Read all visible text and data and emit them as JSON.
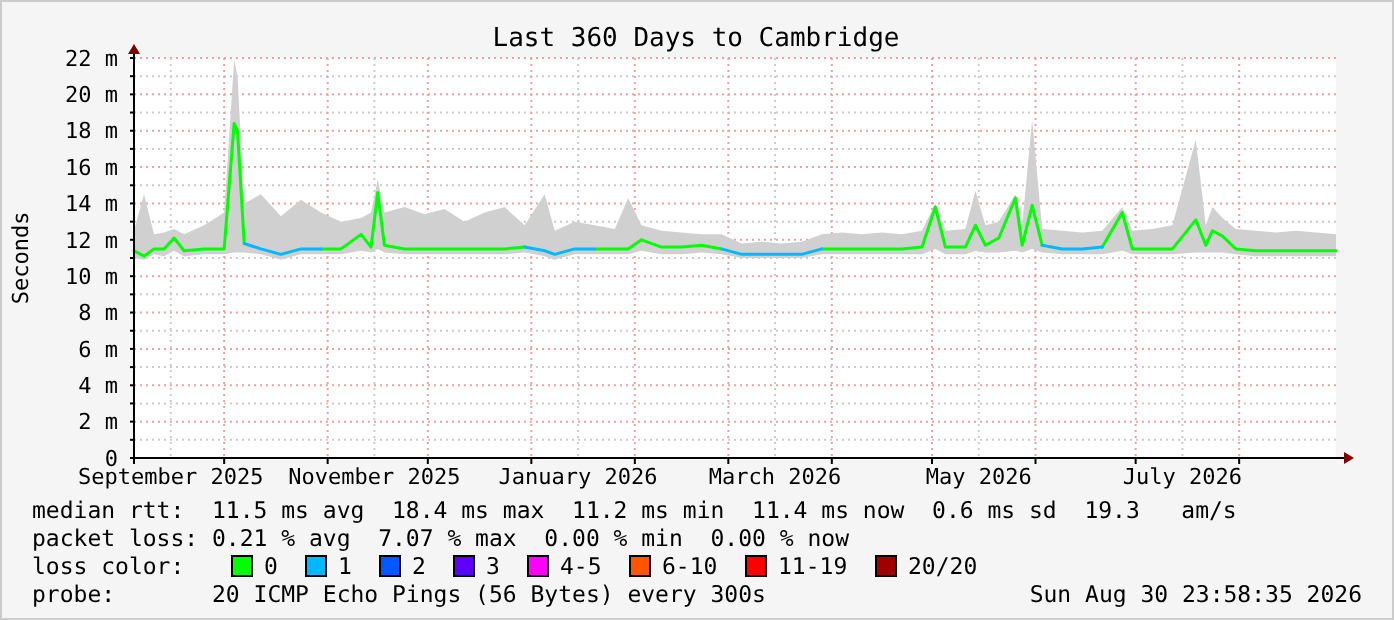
{
  "chart_data": {
    "type": "line",
    "title": "Last 360 Days to Cambridge",
    "ylabel": "Seconds",
    "legend_title": "loss color:",
    "legend": "bottom",
    "grid": true,
    "marker": "none",
    "line_style": "solid",
    "xlim": [
      "2025-09-04",
      "2026-08-30"
    ],
    "xticks": [
      {
        "value": "2025-09-15",
        "label": "September 2025"
      },
      {
        "value": "2025-10-01",
        "label": null
      },
      {
        "value": "2025-11-01",
        "label": null
      },
      {
        "value": "2025-11-15",
        "label": "November 2025"
      },
      {
        "value": "2025-12-01",
        "label": null
      },
      {
        "value": "2026-01-01",
        "label": null
      },
      {
        "value": "2026-01-15",
        "label": "January 2026"
      },
      {
        "value": "2026-02-01",
        "label": null
      },
      {
        "value": "2026-03-01",
        "label": null
      },
      {
        "value": "2026-03-15",
        "label": "March 2026"
      },
      {
        "value": "2026-04-01",
        "label": null
      },
      {
        "value": "2026-05-01",
        "label": null
      },
      {
        "value": "2026-05-15",
        "label": "May 2026"
      },
      {
        "value": "2026-06-01",
        "label": null
      },
      {
        "value": "2026-07-01",
        "label": null
      },
      {
        "value": "2026-07-15",
        "label": "July 2026"
      },
      {
        "value": "2026-08-01",
        "label": null
      }
    ],
    "ylim": [
      0,
      22
    ],
    "yticks": [
      0,
      {
        "value": 1,
        "label": null
      },
      {
        "value": 2,
        "label": "2 m"
      },
      {
        "value": 3,
        "label": null
      },
      {
        "value": 4,
        "label": "4 m"
      },
      {
        "value": 5,
        "label": null
      },
      {
        "value": 6,
        "label": "6 m"
      },
      {
        "value": 7,
        "label": null
      },
      {
        "value": 8,
        "label": "8 m"
      },
      {
        "value": 9,
        "label": null
      },
      {
        "value": 10,
        "label": "10 m"
      },
      {
        "value": 11,
        "label": null
      },
      {
        "value": 12,
        "label": "12 m"
      },
      {
        "value": 13,
        "label": null
      },
      {
        "value": 14,
        "label": "14 m"
      },
      {
        "value": 15,
        "label": null
      },
      {
        "value": 16,
        "label": "16 m"
      },
      {
        "value": 17,
        "label": null
      },
      {
        "value": 18,
        "label": "18 m"
      },
      {
        "value": 19,
        "label": null
      },
      {
        "value": 20,
        "label": "20 m"
      },
      {
        "value": 21,
        "label": null
      },
      {
        "value": 22,
        "label": "22 m"
      }
    ],
    "x": [
      "2025-09-04",
      "2025-09-07",
      "2025-09-10",
      "2025-09-13",
      "2025-09-16",
      "2025-09-19",
      "2025-09-25",
      "2025-10-01",
      "2025-10-04",
      "2025-10-05",
      "2025-10-07",
      "2025-10-12",
      "2025-10-18",
      "2025-10-24",
      "2025-10-30",
      "2025-11-05",
      "2025-11-11",
      "2025-11-14",
      "2025-11-16",
      "2025-11-18",
      "2025-11-24",
      "2025-11-30",
      "2025-12-06",
      "2025-12-12",
      "2025-12-18",
      "2025-12-24",
      "2025-12-30",
      "2026-01-05",
      "2026-01-08",
      "2026-01-14",
      "2026-01-20",
      "2026-01-26",
      "2026-01-30",
      "2026-02-03",
      "2026-02-09",
      "2026-02-15",
      "2026-02-21",
      "2026-02-27",
      "2026-03-05",
      "2026-03-11",
      "2026-03-17",
      "2026-03-23",
      "2026-03-29",
      "2026-04-04",
      "2026-04-10",
      "2026-04-16",
      "2026-04-22",
      "2026-04-28",
      "2026-05-02",
      "2026-05-05",
      "2026-05-11",
      "2026-05-14",
      "2026-05-17",
      "2026-05-21",
      "2026-05-26",
      "2026-05-28",
      "2026-05-31",
      "2026-06-03",
      "2026-06-09",
      "2026-06-15",
      "2026-06-21",
      "2026-06-27",
      "2026-06-30",
      "2026-07-06",
      "2026-07-12",
      "2026-07-19",
      "2026-07-22",
      "2026-07-24",
      "2026-07-27",
      "2026-07-31",
      "2026-08-06",
      "2026-08-12",
      "2026-08-18",
      "2026-08-24",
      "2026-08-30"
    ],
    "series": [
      {
        "name": "0",
        "color": "#00ff00",
        "values": [
          11.4,
          11.1,
          11.5,
          11.5,
          12.1,
          11.4,
          11.5,
          11.5,
          18.4,
          18,
          11.8,
          null,
          null,
          null,
          11.5,
          11.5,
          12.3,
          11.6,
          14.6,
          11.7,
          11.5,
          11.5,
          11.5,
          11.5,
          11.5,
          11.5,
          11.6,
          null,
          null,
          null,
          11.5,
          11.5,
          11.5,
          12,
          11.6,
          11.6,
          11.7,
          11.5,
          null,
          null,
          null,
          null,
          11.5,
          11.5,
          11.5,
          11.5,
          11.5,
          11.6,
          13.8,
          11.6,
          11.6,
          12.8,
          11.7,
          12.1,
          14.3,
          11.7,
          13.9,
          11.7,
          null,
          null,
          11.6,
          13.5,
          11.5,
          11.5,
          11.5,
          13.1,
          11.7,
          12.5,
          12.2,
          11.5,
          11.4,
          11.4,
          11.4,
          11.4,
          11.4
        ],
        "upper": [
          12.5,
          14.5,
          12.3,
          12.4,
          12.6,
          12.3,
          12.8,
          13.5,
          21.9,
          21,
          14,
          14.5,
          13.3,
          14.2,
          13.5,
          13,
          13.2,
          13.5,
          15.3,
          13.5,
          13.8,
          13.4,
          13.7,
          13,
          13.5,
          13.8,
          12.8,
          14.5,
          12.5,
          13,
          12.8,
          12.6,
          14.3,
          12.8,
          12.5,
          12.4,
          12.3,
          12.3,
          11.8,
          11.9,
          11.8,
          11.9,
          12.3,
          12.4,
          12.3,
          12.4,
          12.3,
          12.5,
          14,
          12.5,
          12.6,
          14.7,
          12.8,
          13,
          14.5,
          12.8,
          18.6,
          12.6,
          12.5,
          12.4,
          12.5,
          13.8,
          12.5,
          12.6,
          12.8,
          17.5,
          12.8,
          13.8,
          13.2,
          12.6,
          12.5,
          12.4,
          12.5,
          12.4,
          12.3
        ],
        "lower": [
          11,
          10.9,
          11.2,
          11.1,
          11.4,
          11.1,
          11.2,
          11.2,
          11.3,
          11.3,
          11.3,
          11.2,
          10.9,
          11.2,
          11.2,
          11.2,
          11.4,
          11.3,
          11.5,
          11.3,
          11.2,
          11.2,
          11.2,
          11.2,
          11.2,
          11.2,
          11.3,
          11.1,
          10.9,
          11.2,
          11.2,
          11.2,
          11.2,
          11.4,
          11.2,
          11.2,
          11.3,
          11.2,
          11,
          11,
          11,
          11,
          11.2,
          11.2,
          11.2,
          11.2,
          11.2,
          11.2,
          11.5,
          11.2,
          11.2,
          11.4,
          11.3,
          11.3,
          11.4,
          11.3,
          11.5,
          11.3,
          11.2,
          11.2,
          11.2,
          11.4,
          11.2,
          11.2,
          11.2,
          11.3,
          11.3,
          11.3,
          11.3,
          11.2,
          11.1,
          11.1,
          11.1,
          11.1,
          11.1
        ]
      },
      {
        "name": "1",
        "color": "#00b8ff",
        "values": [
          null,
          null,
          null,
          null,
          null,
          null,
          null,
          null,
          null,
          null,
          11.8,
          11.5,
          11.2,
          11.5,
          11.5,
          null,
          null,
          null,
          null,
          null,
          null,
          null,
          null,
          null,
          null,
          null,
          11.6,
          11.4,
          11.2,
          11.5,
          11.5,
          null,
          null,
          null,
          null,
          null,
          null,
          11.5,
          11.2,
          11.2,
          11.2,
          11.2,
          11.5,
          null,
          null,
          null,
          null,
          null,
          null,
          null,
          null,
          null,
          null,
          null,
          null,
          null,
          null,
          11.7,
          11.5,
          11.5,
          11.6,
          null,
          null,
          null,
          null,
          null,
          null,
          null,
          null,
          null,
          null,
          null,
          null,
          null,
          null
        ]
      },
      {
        "name": "2",
        "color": "#0059ff",
        "values": [
          null,
          null,
          null,
          null,
          null,
          null,
          null,
          null,
          null,
          null,
          null,
          null,
          null,
          null,
          null,
          null,
          null,
          null,
          null,
          null,
          null,
          null,
          null,
          null,
          null,
          null,
          null,
          null,
          null,
          null,
          null,
          null,
          null,
          null,
          null,
          null,
          null,
          null,
          null,
          null,
          null,
          null,
          null,
          null,
          null,
          null,
          null,
          null,
          null,
          null,
          null,
          null,
          null,
          null,
          null,
          null,
          null,
          null,
          null,
          null,
          null,
          null,
          null,
          null,
          null,
          null,
          null,
          null,
          null,
          null,
          null,
          null,
          null,
          null,
          null
        ]
      },
      {
        "name": "3",
        "color": "#5e00ff",
        "values": [
          null,
          null,
          null,
          null,
          null,
          null,
          null,
          null,
          null,
          null,
          null,
          null,
          null,
          null,
          null,
          null,
          null,
          null,
          null,
          null,
          null,
          null,
          null,
          null,
          null,
          null,
          null,
          null,
          null,
          null,
          null,
          null,
          null,
          null,
          null,
          null,
          null,
          null,
          null,
          null,
          null,
          null,
          null,
          null,
          null,
          null,
          null,
          null,
          null,
          null,
          null,
          null,
          null,
          null,
          null,
          null,
          null,
          null,
          null,
          null,
          null,
          null,
          null,
          null,
          null,
          null,
          null,
          null,
          null,
          null,
          null,
          null,
          null,
          null,
          null
        ]
      },
      {
        "name": "4-5",
        "color": "#ff00ff",
        "values": [
          null,
          null,
          null,
          null,
          null,
          null,
          null,
          null,
          null,
          null,
          null,
          null,
          null,
          null,
          null,
          null,
          null,
          null,
          null,
          null,
          null,
          null,
          null,
          null,
          null,
          null,
          null,
          null,
          null,
          null,
          null,
          null,
          null,
          null,
          null,
          null,
          null,
          null,
          null,
          null,
          null,
          null,
          null,
          null,
          null,
          null,
          null,
          null,
          null,
          null,
          null,
          null,
          null,
          null,
          null,
          null,
          null,
          null,
          null,
          null,
          null,
          null,
          null,
          null,
          null,
          null,
          null,
          null,
          null,
          null,
          null,
          null,
          null,
          null,
          null
        ]
      },
      {
        "name": "6-10",
        "color": "#ff5500",
        "values": [
          null,
          null,
          null,
          null,
          null,
          null,
          null,
          null,
          null,
          null,
          null,
          null,
          null,
          null,
          null,
          null,
          null,
          null,
          null,
          null,
          null,
          null,
          null,
          null,
          null,
          null,
          null,
          null,
          null,
          null,
          null,
          null,
          null,
          null,
          null,
          null,
          null,
          null,
          null,
          null,
          null,
          null,
          null,
          null,
          null,
          null,
          null,
          null,
          null,
          null,
          null,
          null,
          null,
          null,
          null,
          null,
          null,
          null,
          null,
          null,
          null,
          null,
          null,
          null,
          null,
          null,
          null,
          null,
          null,
          null,
          null,
          null,
          null,
          null,
          null
        ]
      },
      {
        "name": "11-19",
        "color": "#ff0000",
        "values": [
          null,
          null,
          null,
          null,
          null,
          null,
          null,
          null,
          null,
          null,
          null,
          null,
          null,
          null,
          null,
          null,
          null,
          null,
          null,
          null,
          null,
          null,
          null,
          null,
          null,
          null,
          null,
          null,
          null,
          null,
          null,
          null,
          null,
          null,
          null,
          null,
          null,
          null,
          null,
          null,
          null,
          null,
          null,
          null,
          null,
          null,
          null,
          null,
          null,
          null,
          null,
          null,
          null,
          null,
          null,
          null,
          null,
          null,
          null,
          null,
          null,
          null,
          null,
          null,
          null,
          null,
          null,
          null,
          null,
          null,
          null,
          null,
          null,
          null,
          null
        ]
      },
      {
        "name": "20/20",
        "color": "#a10000",
        "values": [
          null,
          null,
          null,
          null,
          null,
          null,
          null,
          null,
          null,
          null,
          null,
          null,
          null,
          null,
          null,
          null,
          null,
          null,
          null,
          null,
          null,
          null,
          null,
          null,
          null,
          null,
          null,
          null,
          null,
          null,
          null,
          null,
          null,
          null,
          null,
          null,
          null,
          null,
          null,
          null,
          null,
          null,
          null,
          null,
          null,
          null,
          null,
          null,
          null,
          null,
          null,
          null,
          null,
          null,
          null,
          null,
          null,
          null,
          null,
          null,
          null,
          null,
          null,
          null,
          null,
          null,
          null,
          null,
          null,
          null,
          null,
          null,
          null,
          null,
          null
        ]
      }
    ],
    "annotations": [
      "median rtt:  11.5 ms avg  18.4 ms max  11.2 ms min  11.4 ms now  0.6 ms sd  19.3   am/s",
      "packet loss: 0.21 % avg  7.07 % max  0.00 % min  0.00 % now",
      "probe:       20 ICMP Echo Pings (56 Bytes) every 300s",
      "Sun Aug 30 23:58:35 2026"
    ]
  }
}
